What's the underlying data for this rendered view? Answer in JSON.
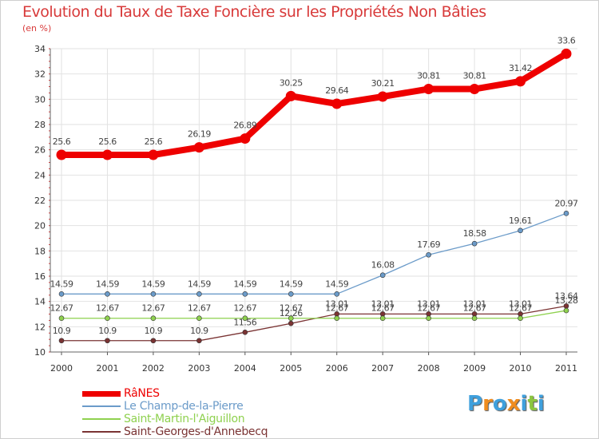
{
  "chart_data": {
    "type": "line",
    "title": "Evolution du Taux de Taxe Foncière sur les Propriétés Non Bâties",
    "ylabel": "(en %)",
    "xlabel": "",
    "x": [
      "2000",
      "2001",
      "2002",
      "2003",
      "2004",
      "2005",
      "2006",
      "2007",
      "2008",
      "2009",
      "2010",
      "2011"
    ],
    "ylim": [
      10,
      34
    ],
    "yticks": [
      "10",
      "12",
      "14",
      "16",
      "18",
      "20",
      "22",
      "24",
      "26",
      "28",
      "30",
      "32",
      "34"
    ],
    "grid": true,
    "series": [
      {
        "name": "RâNES",
        "color": "#ee0000",
        "values": [
          25.6,
          25.6,
          25.6,
          26.19,
          26.89,
          30.25,
          29.64,
          30.21,
          30.81,
          30.81,
          31.42,
          33.6
        ],
        "labels": [
          "25.6",
          "25.6",
          "25.6",
          "26.19",
          "26.89",
          "30.25",
          "29.64",
          "30.21",
          "30.81",
          "30.81",
          "31.42",
          "33.6"
        ]
      },
      {
        "name": "Le Champ-de-la-Pierre",
        "color": "#6b9bc9",
        "values": [
          14.59,
          14.59,
          14.59,
          14.59,
          14.59,
          14.59,
          14.59,
          16.08,
          17.69,
          18.58,
          19.61,
          20.97
        ],
        "labels": [
          "14.59",
          "14.59",
          "14.59",
          "14.59",
          "14.59",
          "14.59",
          "14.59",
          "16.08",
          "17.69",
          "18.58",
          "19.61",
          "20.97"
        ]
      },
      {
        "name": "Saint-Martin-l'Aiguillon",
        "color": "#8fd14f",
        "values": [
          12.67,
          12.67,
          12.67,
          12.67,
          12.67,
          12.67,
          12.67,
          12.67,
          12.67,
          12.67,
          12.67,
          13.28
        ],
        "labels": [
          "12.67",
          "12.67",
          "12.67",
          "12.67",
          "12.67",
          "12.67",
          "12.67",
          "12.67",
          "12.67",
          "12.67",
          "12.67",
          "13.28"
        ]
      },
      {
        "name": "Saint-Georges-d'Annebecq",
        "color": "#7a3333",
        "values": [
          10.9,
          10.9,
          10.9,
          10.9,
          11.56,
          12.26,
          13.01,
          13.01,
          13.01,
          13.01,
          13.01,
          13.64
        ],
        "labels": [
          "10.9",
          "10.9",
          "10.9",
          "10.9",
          "11.56",
          "12.26",
          "13.01",
          "13.01",
          "13.01",
          "13.01",
          "13.01",
          "13.64"
        ]
      }
    ],
    "legend": "bottom-left"
  },
  "branding": {
    "logo_text": "Proxiti",
    "logo_colors": [
      "#3fa0dd",
      "#f08c1e",
      "#3fa0dd",
      "#f08c1e",
      "#3fa0dd",
      "#8cc63f",
      "#3fa0dd"
    ]
  }
}
